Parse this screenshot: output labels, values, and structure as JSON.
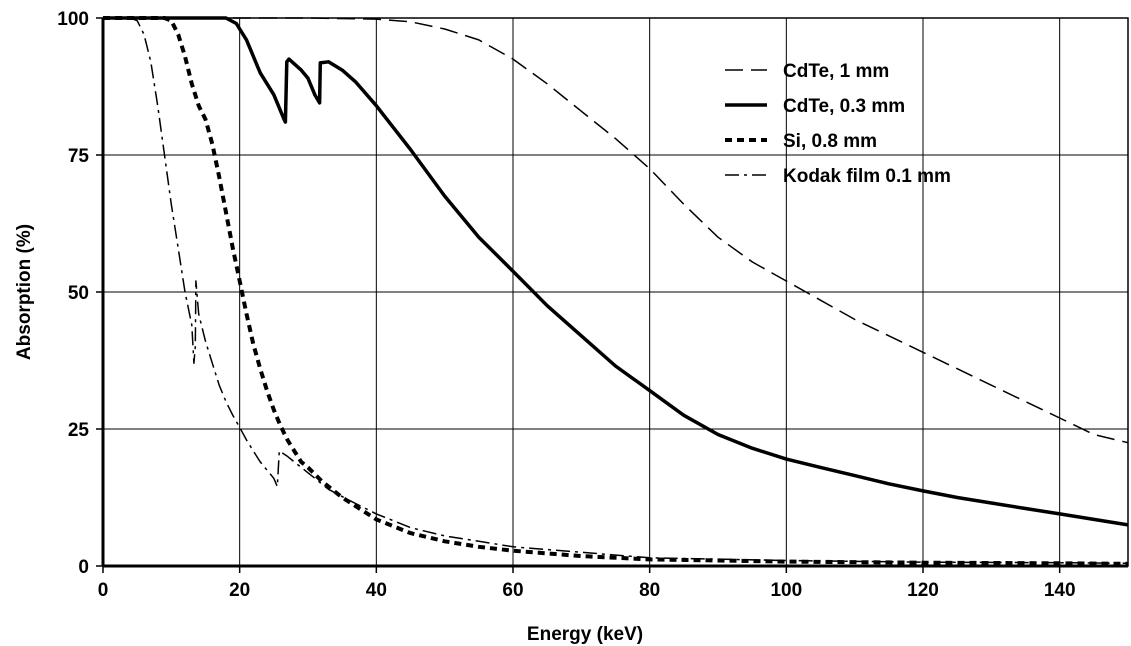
{
  "chart_data": {
    "type": "line",
    "title": "",
    "xlabel": "Energy (keV)",
    "ylabel": "Absorption (%)",
    "xlim": [
      0,
      150
    ],
    "ylim": [
      0,
      100
    ],
    "xticks": [
      0,
      20,
      40,
      60,
      80,
      100,
      120,
      140
    ],
    "yticks": [
      0,
      25,
      50,
      75,
      100
    ],
    "x_tick_labels": [
      "0",
      "20",
      "40",
      "60",
      "80",
      "100",
      "120",
      "140"
    ],
    "y_tick_labels": [
      "0",
      "25",
      "50",
      "75",
      "100"
    ],
    "grid": true,
    "legend_position": "top-right",
    "series": [
      {
        "name": "CdTe, 1 mm",
        "style": "long-dash",
        "points": [
          [
            0,
            100
          ],
          [
            10,
            100
          ],
          [
            20,
            100
          ],
          [
            30,
            100
          ],
          [
            40,
            99.8
          ],
          [
            45,
            99.3
          ],
          [
            50,
            98
          ],
          [
            55,
            96
          ],
          [
            60,
            92.5
          ],
          [
            65,
            88
          ],
          [
            70,
            83
          ],
          [
            75,
            78
          ],
          [
            80,
            72.5
          ],
          [
            85,
            66
          ],
          [
            90,
            60
          ],
          [
            95,
            55.5
          ],
          [
            100,
            52
          ],
          [
            105,
            48.5
          ],
          [
            110,
            45
          ],
          [
            115,
            42
          ],
          [
            120,
            39
          ],
          [
            125,
            36
          ],
          [
            130,
            33
          ],
          [
            135,
            30
          ],
          [
            140,
            27
          ],
          [
            145,
            24
          ],
          [
            150,
            22.5
          ]
        ]
      },
      {
        "name": "CdTe, 0.3 mm",
        "style": "solid",
        "points": [
          [
            0,
            100
          ],
          [
            10,
            100
          ],
          [
            15,
            100.2
          ],
          [
            18,
            100
          ],
          [
            19.5,
            99
          ],
          [
            21,
            96
          ],
          [
            23,
            90
          ],
          [
            25,
            86
          ],
          [
            26.5,
            81.5
          ],
          [
            26.7,
            81
          ],
          [
            26.9,
            92
          ],
          [
            27.2,
            92.5
          ],
          [
            29,
            90.5
          ],
          [
            30,
            89
          ],
          [
            31,
            86
          ],
          [
            31.7,
            84.5
          ],
          [
            31.8,
            91.8
          ],
          [
            33,
            92
          ],
          [
            35,
            90.5
          ],
          [
            37,
            88.3
          ],
          [
            40,
            84
          ],
          [
            45,
            76
          ],
          [
            50,
            67.5
          ],
          [
            55,
            60
          ],
          [
            60,
            53.8
          ],
          [
            65,
            47.5
          ],
          [
            70,
            42
          ],
          [
            75,
            36.5
          ],
          [
            80,
            32
          ],
          [
            85,
            27.5
          ],
          [
            90,
            24
          ],
          [
            95,
            21.5
          ],
          [
            100,
            19.5
          ],
          [
            105,
            18
          ],
          [
            110,
            16.5
          ],
          [
            115,
            15
          ],
          [
            120,
            13.7
          ],
          [
            125,
            12.5
          ],
          [
            130,
            11.5
          ],
          [
            135,
            10.5
          ],
          [
            140,
            9.5
          ],
          [
            145,
            8.5
          ],
          [
            150,
            7.5
          ]
        ]
      },
      {
        "name": "Si, 0.8 mm",
        "style": "short-dash",
        "points": [
          [
            0,
            100
          ],
          [
            5,
            100
          ],
          [
            9,
            100.2
          ],
          [
            10,
            99.5
          ],
          [
            11,
            97
          ],
          [
            12,
            93
          ],
          [
            13,
            88
          ],
          [
            14,
            84
          ],
          [
            15,
            81.5
          ],
          [
            16,
            77
          ],
          [
            17,
            71
          ],
          [
            18,
            64.5
          ],
          [
            19,
            58
          ],
          [
            20,
            52
          ],
          [
            21,
            46
          ],
          [
            22,
            40.5
          ],
          [
            23,
            36
          ],
          [
            24,
            32
          ],
          [
            25,
            28.5
          ],
          [
            26,
            25.5
          ],
          [
            27,
            23
          ],
          [
            28,
            21
          ],
          [
            29,
            19
          ],
          [
            30,
            18
          ],
          [
            32,
            15.5
          ],
          [
            35,
            12.5
          ],
          [
            40,
            8.5
          ],
          [
            45,
            6
          ],
          [
            50,
            4.5
          ],
          [
            55,
            3.5
          ],
          [
            60,
            2.8
          ],
          [
            70,
            1.8
          ],
          [
            80,
            1.2
          ],
          [
            100,
            0.8
          ],
          [
            120,
            0.6
          ],
          [
            140,
            0.5
          ],
          [
            150,
            0.4
          ]
        ]
      },
      {
        "name": "Kodak film 0.1 mm",
        "style": "dash-dot",
        "points": [
          [
            0,
            100
          ],
          [
            4,
            100
          ],
          [
            5,
            99.5
          ],
          [
            6,
            97
          ],
          [
            7,
            92
          ],
          [
            8,
            84
          ],
          [
            9,
            75
          ],
          [
            10,
            66
          ],
          [
            11,
            58
          ],
          [
            12,
            50
          ],
          [
            13,
            44
          ],
          [
            13.3,
            37
          ],
          [
            13.5,
            40
          ],
          [
            13.6,
            52
          ],
          [
            14,
            46
          ],
          [
            15,
            41
          ],
          [
            16,
            37
          ],
          [
            17,
            33
          ],
          [
            18,
            30
          ],
          [
            19,
            27.5
          ],
          [
            20,
            25.3
          ],
          [
            21,
            23
          ],
          [
            22,
            21
          ],
          [
            23,
            19
          ],
          [
            24,
            17.5
          ],
          [
            25,
            16
          ],
          [
            25.5,
            14.5
          ],
          [
            25.8,
            21
          ],
          [
            27,
            20
          ],
          [
            28,
            19
          ],
          [
            30,
            17
          ],
          [
            33,
            14
          ],
          [
            36,
            12
          ],
          [
            40,
            9.5
          ],
          [
            45,
            7
          ],
          [
            50,
            5.5
          ],
          [
            55,
            4.5
          ],
          [
            60,
            3.5
          ],
          [
            70,
            2.5
          ],
          [
            80,
            1.5
          ],
          [
            100,
            1
          ],
          [
            120,
            0.7
          ],
          [
            140,
            0.6
          ],
          [
            150,
            0.5
          ]
        ]
      }
    ]
  }
}
